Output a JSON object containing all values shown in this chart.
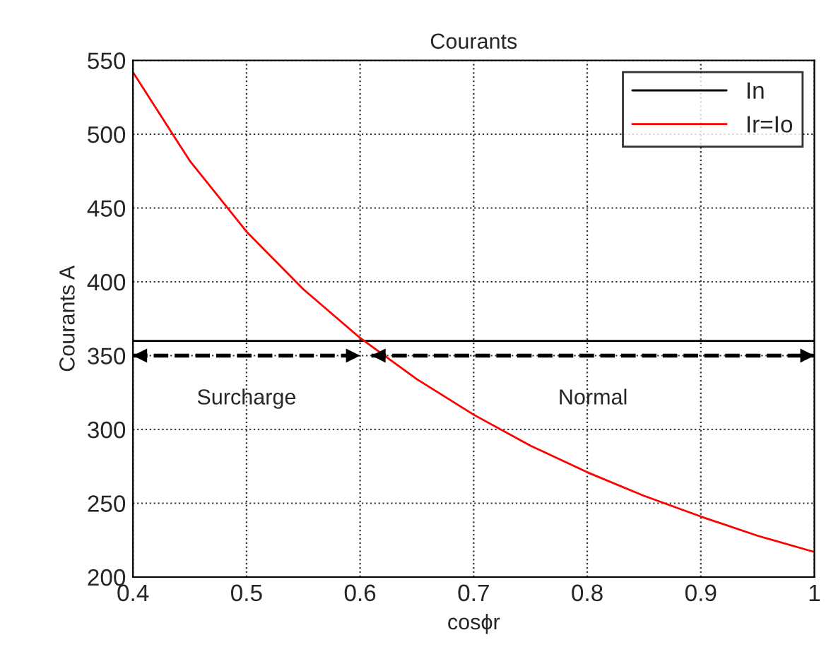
{
  "chart_data": {
    "type": "line",
    "title": "Courants",
    "xlabel": "cosϕr",
    "ylabel": "Courants A",
    "xlim": [
      0.4,
      1
    ],
    "xticks": [
      0.4,
      0.5,
      0.6,
      0.7,
      0.8,
      0.9,
      {
        "value": 1,
        "label": "1"
      }
    ],
    "ylim": [
      200,
      550
    ],
    "yticks": [
      200,
      250,
      300,
      350,
      400,
      450,
      500,
      550
    ],
    "grid": true,
    "legend": "top right",
    "series": [
      {
        "name": "In",
        "color": "#000000",
        "x": [
          0.4,
          1
        ],
        "values": [
          360,
          360
        ]
      },
      {
        "name": "Ir=Io",
        "color": "#ff0000",
        "x": [
          0.4,
          0.45,
          0.5,
          0.55,
          0.6,
          0.65,
          0.7,
          0.75,
          0.8,
          0.85,
          0.9,
          0.95,
          1
        ],
        "values": [
          542,
          482,
          434,
          395,
          362,
          334,
          310,
          289,
          271,
          255,
          241,
          228,
          217
        ]
      },
      {
        "color": "#000000",
        "line_style": "dashed",
        "x": [
          0.4,
          0.6
        ],
        "values": [
          350,
          350
        ]
      },
      {
        "color": "#000000",
        "line_style": "dashed",
        "x": [
          0.61,
          1
        ],
        "values": [
          350,
          350
        ]
      }
    ],
    "annotations": [
      "Surcharge",
      "Normal"
    ]
  }
}
